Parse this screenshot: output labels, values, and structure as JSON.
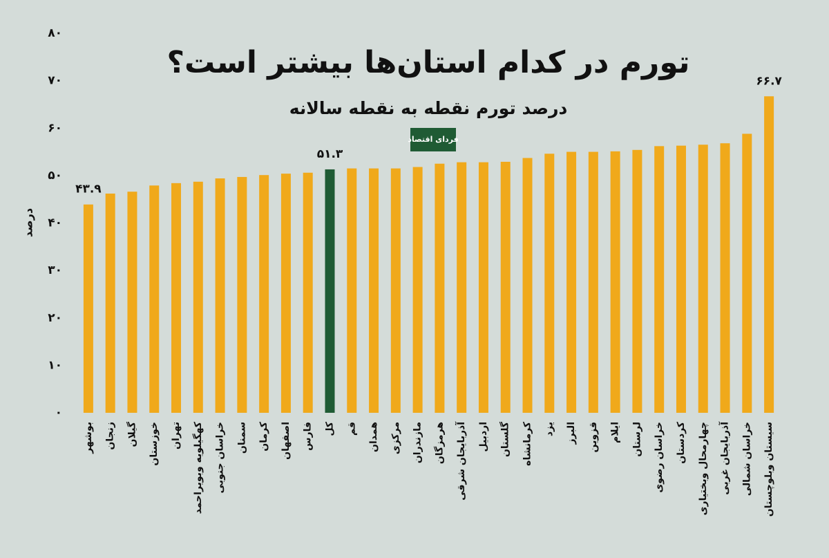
{
  "chart_data": {
    "type": "bar",
    "title": "تورم در کدام استان‌ها بیشتر است؟",
    "subtitle": "درصد تورم نقطه به نقطه سالانه",
    "logo": "فردای اقتصاد",
    "y_label": "درصد",
    "categories": [
      "بوشهر",
      "زنجان",
      "گیلان",
      "خوزستان",
      "تهران",
      "کهگیلویه وبویراحمد",
      "خراسان جنوبی",
      "سمنان",
      "کرمان",
      "اصفهان",
      "فارس",
      "کل",
      "قم",
      "همدان",
      "مرکزی",
      "مازندران",
      "هرمزگان",
      "آذربایجان شرقی",
      "اردبیل",
      "گلستان",
      "کرمانشاه",
      "یزد",
      "البرز",
      "قزوین",
      "ایلام",
      "لرستان",
      "خراسان رضوی",
      "کردستان",
      "چهارمحال وبختیاری",
      "آذربایجان غربی",
      "خراسان شمالی",
      "سیستان وبلوچستان"
    ],
    "values": [
      43.9,
      46.2,
      46.6,
      47.9,
      48.4,
      48.7,
      49.4,
      49.7,
      50.1,
      50.4,
      50.6,
      51.3,
      51.5,
      51.5,
      51.5,
      51.8,
      52.5,
      52.8,
      52.8,
      52.9,
      53.7,
      54.6,
      55.0,
      55.0,
      55.1,
      55.4,
      56.2,
      56.3,
      56.5,
      56.8,
      58.8,
      66.7
    ],
    "value_labels": [
      "۴۳.۹",
      null,
      null,
      null,
      null,
      null,
      null,
      null,
      null,
      null,
      null,
      "۵۱.۳",
      null,
      null,
      null,
      null,
      null,
      null,
      null,
      null,
      null,
      null,
      null,
      null,
      null,
      null,
      null,
      null,
      null,
      null,
      null,
      "۶۶.۷"
    ],
    "colors": [
      "#f0a91b",
      "#f0a91b",
      "#f0a91b",
      "#f0a91b",
      "#f0a91b",
      "#f0a91b",
      "#f0a91b",
      "#f0a91b",
      "#f0a91b",
      "#f0a91b",
      "#f0a91b",
      "#1f5b34",
      "#f0a91b",
      "#f0a91b",
      "#f0a91b",
      "#f0a91b",
      "#f0a91b",
      "#f0a91b",
      "#f0a91b",
      "#f0a91b",
      "#f0a91b",
      "#f0a91b",
      "#f0a91b",
      "#f0a91b",
      "#f0a91b",
      "#f0a91b",
      "#f0a91b",
      "#f0a91b",
      "#f0a91b",
      "#f0a91b",
      "#f0a91b",
      "#f0a91b"
    ],
    "ylim": [
      0,
      80
    ],
    "yticks": [
      {
        "value": 0,
        "label": "۰"
      },
      {
        "value": 10,
        "label": "۱۰"
      },
      {
        "value": 20,
        "label": "۲۰"
      },
      {
        "value": 30,
        "label": "۳۰"
      },
      {
        "value": 40,
        "label": "۴۰"
      },
      {
        "value": 50,
        "label": "۵۰"
      },
      {
        "value": 60,
        "label": "۶۰"
      },
      {
        "value": 70,
        "label": "۷۰"
      },
      {
        "value": 80,
        "label": "۸۰"
      }
    ],
    "grid": false
  }
}
